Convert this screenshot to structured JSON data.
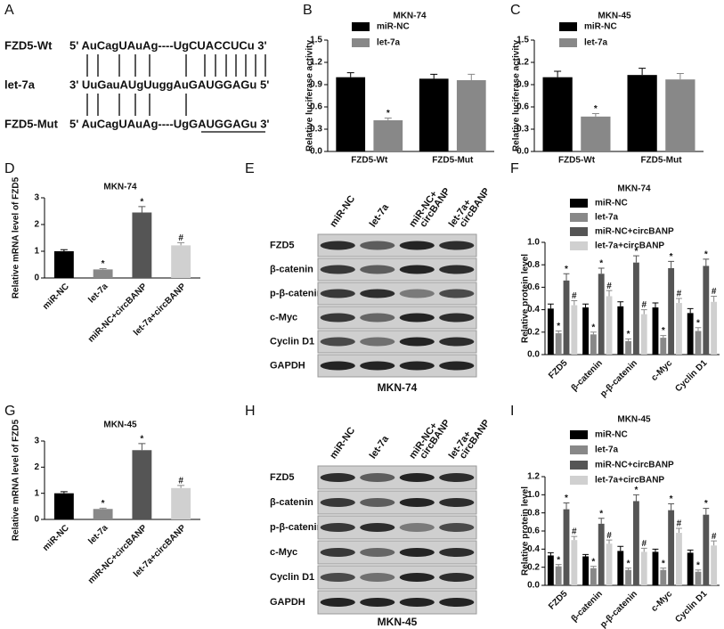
{
  "panels": [
    "A",
    "B",
    "C",
    "D",
    "E",
    "F",
    "G",
    "H",
    "I"
  ],
  "sequence": {
    "rows": [
      {
        "name": "FZD5-Wt",
        "seq": "5' AuCagUAuAg----UgCUACCUCu 3'"
      },
      {
        "name": "let-7a",
        "seq": "3' UuGauAUgUuggAuGAUGGAGu 5'"
      },
      {
        "name": "FZD5-Mut",
        "seq": "5' AuCagUAuAg----UgGAUGGAGu 3'"
      }
    ]
  },
  "blots": [
    {
      "columns": [
        [
          "miR-NC"
        ],
        [
          "let-7a"
        ],
        [
          "miR-NC+",
          "circBANP"
        ],
        [
          "let-7a+",
          "circBANP"
        ]
      ],
      "rows": [
        "FZD5",
        "β-catenin",
        "p-β-catenin",
        "c-Myc",
        "Cyclin D1",
        "GAPDH"
      ],
      "caption": "MKN-74"
    },
    {
      "columns": [
        [
          "miR-NC"
        ],
        [
          "let-7a"
        ],
        [
          "miR-NC+",
          "circBANP"
        ],
        [
          "let-7a+",
          "circBANP"
        ]
      ],
      "rows": [
        "FZD5",
        "β-catenin",
        "p-β-catenin",
        "c-Myc",
        "Cyclin D1",
        "GAPDH"
      ],
      "caption": "MKN-45"
    }
  ],
  "chart_data": [
    {
      "type": "bar",
      "title": "MKN-74",
      "y_label": "Relative luciferase activity",
      "categories": [
        "FZD5-Wt",
        "FZD5-Mut"
      ],
      "series": [
        {
          "name": "miR-NC",
          "color": "#000000",
          "values": [
            1.0,
            0.98
          ],
          "errors": [
            0.06,
            0.06
          ]
        },
        {
          "name": "let-7a",
          "color": "#888888",
          "values": [
            0.42,
            0.96
          ],
          "errors": [
            0.03,
            0.08
          ],
          "sig": [
            "*",
            null
          ]
        }
      ],
      "ylim": [
        0,
        1.5
      ],
      "yticks": [
        {
          "value": 0,
          "label": "0.0"
        },
        0.3,
        0.6,
        0.9,
        1.2,
        1.5
      ]
    },
    {
      "type": "bar",
      "title": "MKN-45",
      "y_label": "Relative luciferase activity",
      "categories": [
        "FZD5-Wt",
        "FZD5-Mut"
      ],
      "series": [
        {
          "name": "miR-NC",
          "color": "#000000",
          "values": [
            1.0,
            1.03
          ],
          "errors": [
            0.08,
            0.09
          ]
        },
        {
          "name": "let-7a",
          "color": "#888888",
          "values": [
            0.47,
            0.97
          ],
          "errors": [
            0.04,
            0.08
          ],
          "sig": [
            "*",
            null
          ]
        }
      ],
      "ylim": [
        0,
        1.5
      ],
      "yticks": [
        {
          "value": 0,
          "label": "0.0"
        },
        0.3,
        0.6,
        0.9,
        1.2,
        1.5
      ]
    },
    {
      "type": "bar",
      "title": "MKN-74",
      "y_label": "Relative mRNA level of FZD5",
      "categories": [
        "miR-NC",
        "let-7a",
        "miR-NC+circBANP",
        "let-7a+circBANP"
      ],
      "values": [
        1.0,
        0.32,
        2.45,
        1.22
      ],
      "errors": [
        0.06,
        0.03,
        0.22,
        0.1
      ],
      "colors": [
        "#000000",
        "#888888",
        "#555555",
        "#d0d0d0"
      ],
      "sig": [
        null,
        "*",
        "*",
        "#"
      ],
      "ylim": [
        0,
        3
      ],
      "yticks": [
        0,
        1,
        2,
        3
      ]
    },
    {
      "type": "bar",
      "title": "MKN-74",
      "y_label": "Relative protein level",
      "categories": [
        "FZD5",
        "β-catenin",
        "p-β-catenin",
        "c-Myc",
        "Cyclin D1"
      ],
      "series": [
        {
          "name": "miR-NC",
          "color": "#000000",
          "values": [
            0.41,
            0.42,
            0.43,
            0.42,
            0.37
          ],
          "errors": [
            0.04,
            0.03,
            0.04,
            0.04,
            0.04
          ]
        },
        {
          "name": "let-7a",
          "color": "#888888",
          "values": [
            0.19,
            0.18,
            0.12,
            0.15,
            0.21
          ],
          "errors": [
            0.02,
            0.02,
            0.02,
            0.02,
            0.03
          ],
          "sig": [
            "*",
            "*",
            "*",
            "*",
            "*"
          ]
        },
        {
          "name": "miR-NC+circBANP",
          "color": "#555555",
          "values": [
            0.66,
            0.72,
            0.82,
            0.77,
            0.79
          ],
          "errors": [
            0.06,
            0.05,
            0.06,
            0.06,
            0.06
          ],
          "sig": [
            "*",
            "*",
            "*",
            "*",
            "*"
          ]
        },
        {
          "name": "let-7a+circBANP",
          "color": "#d0d0d0",
          "values": [
            0.44,
            0.52,
            0.36,
            0.46,
            0.47
          ],
          "errors": [
            0.04,
            0.05,
            0.04,
            0.04,
            0.05
          ],
          "sig": [
            "#",
            "#",
            "#",
            "#",
            "#"
          ]
        }
      ],
      "ylim": [
        0,
        1.0
      ],
      "yticks": [
        {
          "value": 0,
          "label": "0.0"
        },
        0.2,
        0.4,
        0.6,
        0.8,
        {
          "value": 1.0,
          "label": "1.0"
        }
      ]
    },
    {
      "type": "bar",
      "title": "MKN-45",
      "y_label": "Relative mRNA level of FZD5",
      "categories": [
        "miR-NC",
        "let-7a",
        "miR-NC+circBANP",
        "let-7a+circBANP"
      ],
      "values": [
        1.0,
        0.4,
        2.65,
        1.2
      ],
      "errors": [
        0.06,
        0.03,
        0.25,
        0.1
      ],
      "colors": [
        "#000000",
        "#888888",
        "#555555",
        "#d0d0d0"
      ],
      "sig": [
        null,
        "*",
        "*",
        "#"
      ],
      "ylim": [
        0,
        3
      ],
      "yticks": [
        0,
        1,
        2,
        3
      ]
    },
    {
      "type": "bar",
      "title": "MKN-45",
      "y_label": "Relative protein level",
      "categories": [
        "FZD5",
        "β-catenin",
        "p-β-catenin",
        "c-Myc",
        "Cyclin D1"
      ],
      "series": [
        {
          "name": "miR-NC",
          "color": "#000000",
          "values": [
            0.33,
            0.32,
            0.38,
            0.37,
            0.36
          ],
          "errors": [
            0.03,
            0.02,
            0.05,
            0.03,
            0.03
          ]
        },
        {
          "name": "let-7a",
          "color": "#888888",
          "values": [
            0.21,
            0.19,
            0.17,
            0.17,
            0.15
          ],
          "errors": [
            0.02,
            0.02,
            0.02,
            0.02,
            0.02
          ],
          "sig": [
            "*",
            "*",
            "*",
            "*",
            "*"
          ]
        },
        {
          "name": "miR-NC+circBANP",
          "color": "#555555",
          "values": [
            0.84,
            0.68,
            0.93,
            0.83,
            0.78
          ],
          "errors": [
            0.07,
            0.06,
            0.07,
            0.07,
            0.07
          ],
          "sig": [
            "*",
            "*",
            "*",
            "*",
            "*"
          ]
        },
        {
          "name": "let-7a+circBANP",
          "color": "#d0d0d0",
          "values": [
            0.5,
            0.46,
            0.37,
            0.58,
            0.44
          ],
          "errors": [
            0.04,
            0.04,
            0.04,
            0.05,
            0.05
          ],
          "sig": [
            "#",
            "#",
            "#",
            "#",
            "#"
          ]
        }
      ],
      "ylim": [
        0,
        1.2
      ],
      "yticks": [
        {
          "value": 0,
          "label": "0.0"
        },
        0.2,
        0.4,
        0.6,
        0.8,
        {
          "value": 1.0,
          "label": "1.0"
        },
        1.2
      ]
    }
  ]
}
